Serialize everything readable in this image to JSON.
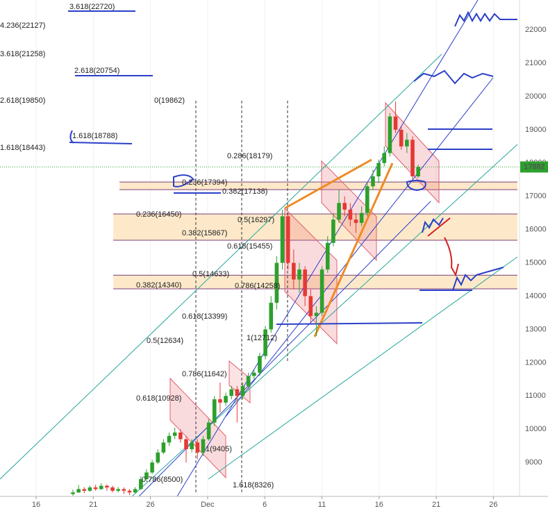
{
  "chart_data": {
    "type": "candlestick",
    "x_labels": [
      "16",
      "21",
      "26",
      "Dec",
      "6",
      "11",
      "16",
      "21",
      "26"
    ],
    "ylim": [
      7980,
      22900
    ],
    "yticks": [
      9000,
      10000,
      11000,
      12000,
      13000,
      14000,
      15000,
      16000,
      17000,
      18000,
      19000,
      20000,
      21000,
      22000
    ],
    "up_color": "#2ca02c",
    "down_color": "#e53935",
    "zones": [
      [
        17430,
        17200
      ],
      [
        16470,
        15680
      ],
      [
        14630,
        14220
      ]
    ],
    "annotations": [
      "3.618(22720)",
      "4.236(22127)",
      "3.618(21258)",
      "2.618(20754)",
      "2.618(19850)",
      "0(19862)",
      "1.618(18788)",
      "1.618(18443)",
      "0.286(18179)",
      "0.236(17394)",
      "0.382(17138)",
      "0.236(16450)",
      "0.5(16297)",
      "0.382(15867)",
      "0.618(15455)",
      "0.5(14633)",
      "0.382(14340)",
      "0.786(14258)",
      "0.618(13399)",
      "1(12712)",
      "0.5(12634)",
      "0.786(11642)",
      "0.618(10928)",
      "1(9405)",
      "0.786(8500)",
      "1.618(8326)"
    ],
    "ohlc": [
      [
        8050,
        8180,
        8000,
        8100
      ],
      [
        8100,
        8320,
        8080,
        8200
      ],
      [
        8200,
        8260,
        8080,
        8150
      ],
      [
        8150,
        8300,
        8120,
        8250
      ],
      [
        8250,
        8330,
        8150,
        8200
      ],
      [
        8200,
        8380,
        8180,
        8300
      ],
      [
        8300,
        8340,
        8150,
        8250
      ],
      [
        8250,
        8300,
        8100,
        8150
      ],
      [
        8150,
        8260,
        8100,
        8200
      ],
      [
        8200,
        8250,
        8050,
        8150
      ],
      [
        8150,
        8200,
        8020,
        8100
      ],
      [
        8100,
        8260,
        8080,
        8200
      ],
      [
        8200,
        8580,
        8180,
        8500
      ],
      [
        8500,
        8800,
        8450,
        8700
      ],
      [
        8700,
        9080,
        8650,
        9000
      ],
      [
        9000,
        9400,
        8950,
        9300
      ],
      [
        9300,
        9700,
        9250,
        9600
      ],
      [
        9600,
        9900,
        9500,
        9800
      ],
      [
        9800,
        10050,
        9700,
        9900
      ],
      [
        9900,
        10000,
        9600,
        9700
      ],
      [
        9700,
        9800,
        9000,
        9400
      ],
      [
        9400,
        9700,
        9300,
        9600
      ],
      [
        9600,
        9700,
        9100,
        9300
      ],
      [
        9300,
        9800,
        9200,
        9700
      ],
      [
        9700,
        10300,
        9650,
        10200
      ],
      [
        10200,
        11000,
        10100,
        10900
      ],
      [
        10900,
        11400,
        10500,
        10800
      ],
      [
        10800,
        11100,
        10700,
        11000
      ],
      [
        11000,
        11300,
        10900,
        11200
      ],
      [
        11200,
        11300,
        10200,
        11000
      ],
      [
        11000,
        11400,
        10900,
        11300
      ],
      [
        11300,
        11700,
        11200,
        11600
      ],
      [
        11600,
        11800,
        11500,
        11700
      ],
      [
        11700,
        12300,
        11600,
        12200
      ],
      [
        12200,
        13100,
        12100,
        13000
      ],
      [
        13000,
        14000,
        12900,
        13800
      ],
      [
        13800,
        15200,
        13600,
        15000
      ],
      [
        15000,
        16600,
        14800,
        16400
      ],
      [
        16400,
        16500,
        14800,
        15000
      ],
      [
        15000,
        15400,
        14200,
        14500
      ],
      [
        14500,
        15000,
        14100,
        14800
      ],
      [
        14800,
        14900,
        13700,
        14000
      ],
      [
        14000,
        14200,
        13200,
        13400
      ],
      [
        13400,
        13700,
        12800,
        13500
      ],
      [
        13500,
        14900,
        13400,
        14800
      ],
      [
        14800,
        15800,
        14700,
        15600
      ],
      [
        15600,
        16500,
        15500,
        16300
      ],
      [
        16300,
        17200,
        16200,
        16800
      ],
      [
        16800,
        17000,
        16400,
        16600
      ],
      [
        16600,
        16800,
        16100,
        16300
      ],
      [
        16300,
        16500,
        15900,
        16200
      ],
      [
        16200,
        16700,
        16100,
        16500
      ],
      [
        16500,
        17400,
        16400,
        17300
      ],
      [
        17300,
        17800,
        17200,
        17600
      ],
      [
        17600,
        18100,
        17400,
        18000
      ],
      [
        18000,
        18500,
        17900,
        18300
      ],
      [
        18300,
        19500,
        18200,
        19400
      ],
      [
        19400,
        19850,
        18900,
        19000
      ],
      [
        19000,
        19100,
        18400,
        18500
      ],
      [
        18500,
        18900,
        18300,
        18700
      ],
      [
        18700,
        18800,
        17500,
        17600
      ],
      [
        17600,
        17950,
        17550,
        17882
      ]
    ]
  }
}
